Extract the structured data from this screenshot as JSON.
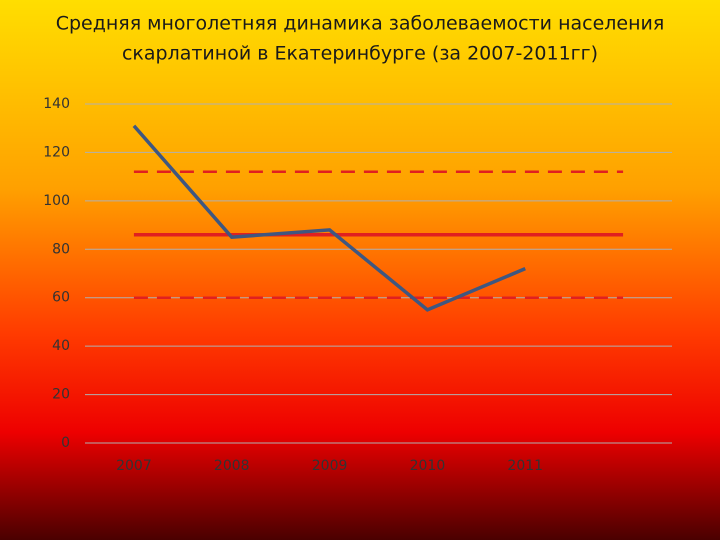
{
  "chart_data": {
    "type": "line",
    "title": [
      "Средняя многолетняя динамика заболеваемости населения",
      "скарлатиной в Екатеринбурге (за 2007-2011гг)"
    ],
    "categories": [
      "2007",
      "2008",
      "2009",
      "2010",
      "2011",
      null
    ],
    "series": [
      {
        "color": "#e02020",
        "line_style": "dashed",
        "values": [
          112,
          112,
          112,
          112,
          112,
          112
        ]
      },
      {
        "color": "#e02020",
        "line_style": "solid",
        "values": [
          86,
          86,
          86,
          86,
          86,
          86
        ]
      },
      {
        "color": "#e02020",
        "line_style": "dashed",
        "values": [
          60,
          60,
          60,
          60,
          60,
          60
        ]
      },
      {
        "color": "#3f5780",
        "line_style": "solid",
        "values": [
          131,
          85,
          88,
          55,
          72,
          null
        ]
      }
    ],
    "ylim": [
      0,
      140
    ],
    "yticks": [
      0,
      20,
      40,
      60,
      80,
      100,
      120,
      140
    ],
    "grid": true
  }
}
